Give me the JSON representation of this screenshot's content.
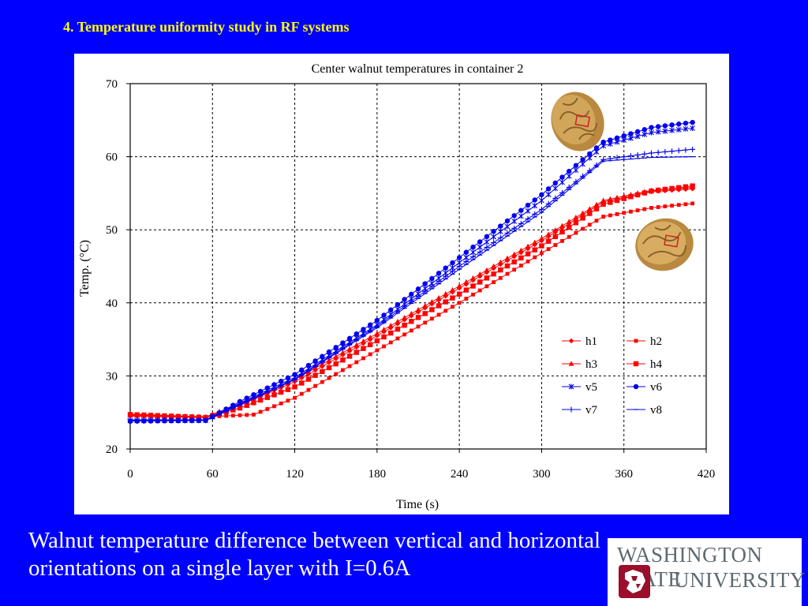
{
  "slide": {
    "title": "4. Temperature uniformity study in RF systems",
    "caption": "Walnut temperature difference between vertical and horizontal orientations on a single layer with I=0.6A"
  },
  "logo": {
    "line1": "WASHINGTON STATE",
    "line2": "UNIVERSITY",
    "color": "#5e6a71",
    "mark_color": "#9b0e2c"
  },
  "colors": {
    "background": "#0000ff",
    "title": "#ffff00",
    "caption": "#ffffff",
    "blue_series": "#0000ee",
    "red_series": "#ff0000"
  },
  "chart_data": {
    "type": "line",
    "title": "Center walnut temperatures in container 2",
    "xlabel": "Time (s)",
    "ylabel": "Temp. (°C)",
    "xlim": [
      0,
      420
    ],
    "ylim": [
      20,
      70
    ],
    "xticks": [
      0,
      60,
      120,
      180,
      240,
      300,
      360,
      420
    ],
    "yticks": [
      20,
      30,
      40,
      50,
      60,
      70
    ],
    "grid": true,
    "legend_position": "bottom-right",
    "series": [
      {
        "name": "h1",
        "marker": "diamond",
        "color": "#ff0000",
        "points": [
          [
            0,
            24.5
          ],
          [
            55,
            24.3
          ],
          [
            80,
            26
          ],
          [
            120,
            29.2
          ],
          [
            180,
            35.5
          ],
          [
            240,
            42
          ],
          [
            300,
            48.5
          ],
          [
            345,
            53.8
          ],
          [
            380,
            55.2
          ],
          [
            410,
            55.6
          ]
        ]
      },
      {
        "name": "h2",
        "marker": "square-small",
        "color": "#ff0000",
        "points": [
          [
            0,
            24.8
          ],
          [
            55,
            24.4
          ],
          [
            90,
            24.7
          ],
          [
            120,
            27
          ],
          [
            180,
            33.5
          ],
          [
            240,
            40
          ],
          [
            300,
            46.8
          ],
          [
            345,
            51.8
          ],
          [
            380,
            53
          ],
          [
            410,
            53.6
          ]
        ]
      },
      {
        "name": "h3",
        "marker": "triangle",
        "color": "#ff0000",
        "points": [
          [
            0,
            24.6
          ],
          [
            55,
            24.4
          ],
          [
            80,
            26.2
          ],
          [
            120,
            29.5
          ],
          [
            180,
            35.8
          ],
          [
            240,
            42.3
          ],
          [
            300,
            48.8
          ],
          [
            345,
            54
          ],
          [
            380,
            55.4
          ],
          [
            410,
            55.8
          ]
        ]
      },
      {
        "name": "h4",
        "marker": "square",
        "color": "#ff0000",
        "points": [
          [
            0,
            24.7
          ],
          [
            55,
            24.3
          ],
          [
            80,
            25.6
          ],
          [
            120,
            28.5
          ],
          [
            180,
            34.8
          ],
          [
            240,
            41.2
          ],
          [
            300,
            47.8
          ],
          [
            345,
            53.5
          ],
          [
            380,
            55.3
          ],
          [
            410,
            56
          ]
        ]
      },
      {
        "name": "v5",
        "marker": "star",
        "color": "#0000ee",
        "points": [
          [
            0,
            23.9
          ],
          [
            55,
            23.9
          ],
          [
            80,
            26.3
          ],
          [
            120,
            29.8
          ],
          [
            180,
            37
          ],
          [
            240,
            45.5
          ],
          [
            300,
            54
          ],
          [
            345,
            61.5
          ],
          [
            380,
            63.3
          ],
          [
            410,
            63.9
          ]
        ]
      },
      {
        "name": "v6",
        "marker": "circle",
        "color": "#0000ee",
        "points": [
          [
            0,
            23.8
          ],
          [
            55,
            23.9
          ],
          [
            80,
            26.5
          ],
          [
            120,
            30.2
          ],
          [
            180,
            37.6
          ],
          [
            240,
            46.2
          ],
          [
            300,
            54.8
          ],
          [
            345,
            62
          ],
          [
            380,
            64
          ],
          [
            410,
            64.7
          ]
        ]
      },
      {
        "name": "v7",
        "marker": "plus",
        "color": "#0000ee",
        "points": [
          [
            0,
            24
          ],
          [
            55,
            24
          ],
          [
            80,
            26.1
          ],
          [
            120,
            29.6
          ],
          [
            180,
            36.8
          ],
          [
            240,
            45
          ],
          [
            300,
            52.8
          ],
          [
            345,
            59.6
          ],
          [
            380,
            60.5
          ],
          [
            410,
            61
          ]
        ]
      },
      {
        "name": "v8",
        "marker": "dash",
        "color": "#0000ee",
        "points": [
          [
            0,
            23.9
          ],
          [
            55,
            23.9
          ],
          [
            80,
            26
          ],
          [
            120,
            29.5
          ],
          [
            180,
            36.6
          ],
          [
            240,
            44.6
          ],
          [
            300,
            52.4
          ],
          [
            345,
            59.4
          ],
          [
            380,
            59.9
          ],
          [
            410,
            60
          ]
        ]
      }
    ]
  }
}
